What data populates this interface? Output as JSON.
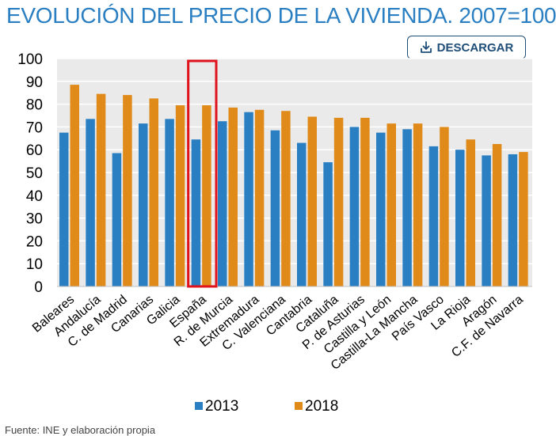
{
  "header": {
    "title": "EVOLUCIÓN DEL PRECIO DE LA VIVIENDA. 2007=100",
    "download_label": "DESCARGAR"
  },
  "colors": {
    "series_2013": "#2a7fc2",
    "series_2018": "#e08a1a",
    "highlight": "#e0121b",
    "plot_bg": "#eaeaea",
    "title": "#2a7fc2"
  },
  "chart_data": {
    "type": "bar",
    "title": "EVOLUCIÓN DEL PRECIO DE LA VIVIENDA. 2007=100",
    "xlabel": "",
    "ylabel": "",
    "ylim": [
      0,
      100
    ],
    "yticks": [
      0,
      10,
      20,
      30,
      40,
      50,
      60,
      70,
      80,
      90,
      100
    ],
    "grid": true,
    "legend_position": "bottom",
    "highlighted_category": "España",
    "categories": [
      "Baleares",
      "Andalucía",
      "C. de Madrid",
      "Canarias",
      "Galicia",
      "España",
      "R. de Murcia",
      "Extremadura",
      "C. Valenciana",
      "Cantabria",
      "Cataluña",
      "P. de Asturias",
      "Castilla y León",
      "Castilla-La Mancha",
      "País Vasco",
      "La Rioja",
      "Aragón",
      "C.F. de Navarra"
    ],
    "series": [
      {
        "name": "2013",
        "values": [
          67.5,
          73.5,
          58.5,
          71.5,
          73.5,
          64.5,
          72.5,
          76.5,
          68.5,
          63,
          54.5,
          70,
          67.5,
          69,
          61.5,
          60,
          57.5,
          58
        ]
      },
      {
        "name": "2018",
        "values": [
          88.5,
          84.5,
          84,
          82.5,
          79.5,
          79.5,
          78.5,
          77.5,
          77,
          74.5,
          74,
          74,
          71.5,
          71.5,
          70,
          64.5,
          62.5,
          59
        ]
      }
    ]
  },
  "footer": {
    "source": "Fuente: INE y elaboración propia"
  }
}
